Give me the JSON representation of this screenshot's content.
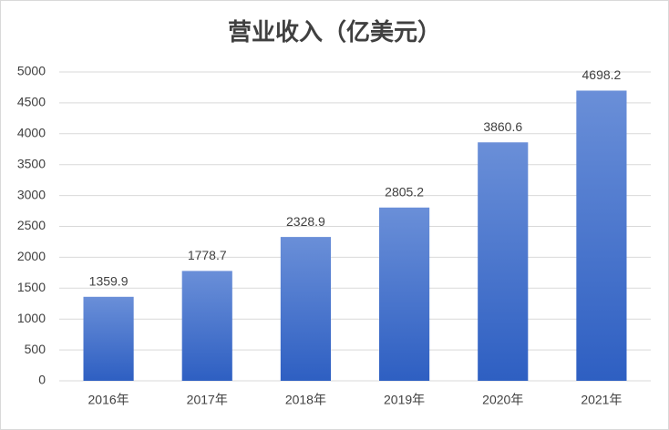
{
  "chart_data": {
    "type": "bar",
    "title": "营业收入（亿美元）",
    "categories": [
      "2016年",
      "2017年",
      "2018年",
      "2019年",
      "2020年",
      "2021年"
    ],
    "values": [
      1359.9,
      1778.7,
      2328.9,
      2805.2,
      3860.6,
      4698.2
    ],
    "color": "#4472c4",
    "ylim": [
      0,
      5000
    ],
    "yticks": [
      0,
      500,
      1000,
      1500,
      2000,
      2500,
      3000,
      3500,
      4000,
      4500,
      5000
    ],
    "grid": true
  }
}
